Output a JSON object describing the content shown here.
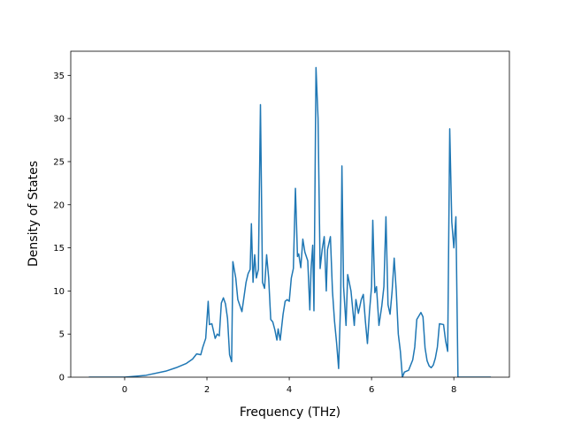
{
  "chart_data": {
    "type": "line",
    "xlabel": "Frequency (THz)",
    "ylabel": "Density of States",
    "color": "#1f77b4",
    "xlim": [
      -1.31,
      9.35
    ],
    "ylim": [
      0,
      37.8
    ],
    "xticks": [
      0,
      2,
      4,
      6,
      8
    ],
    "yticks": [
      0,
      5,
      10,
      15,
      20,
      25,
      30,
      35
    ],
    "x": [
      -0.87,
      0,
      0.5,
      1,
      1.25,
      1.5,
      1.65,
      1.75,
      1.85,
      1.9,
      1.97,
      2.03,
      2.06,
      2.12,
      2.2,
      2.25,
      2.3,
      2.35,
      2.4,
      2.45,
      2.5,
      2.55,
      2.6,
      2.63,
      2.7,
      2.75,
      2.85,
      2.95,
      3.0,
      3.05,
      3.08,
      3.12,
      3.16,
      3.2,
      3.25,
      3.3,
      3.35,
      3.4,
      3.45,
      3.5,
      3.55,
      3.6,
      3.65,
      3.7,
      3.73,
      3.78,
      3.85,
      3.9,
      3.95,
      4.0,
      4.05,
      4.1,
      4.15,
      4.2,
      4.23,
      4.28,
      4.33,
      4.38,
      4.45,
      4.5,
      4.53,
      4.57,
      4.6,
      4.65,
      4.7,
      4.75,
      4.8,
      4.85,
      4.9,
      4.93,
      5.0,
      5.05,
      5.1,
      5.15,
      5.2,
      5.25,
      5.28,
      5.32,
      5.38,
      5.42,
      5.5,
      5.58,
      5.62,
      5.68,
      5.75,
      5.8,
      5.85,
      5.9,
      5.95,
      6.0,
      6.03,
      6.08,
      6.12,
      6.18,
      6.25,
      6.3,
      6.35,
      6.4,
      6.45,
      6.5,
      6.55,
      6.6,
      6.65,
      6.7,
      6.75,
      6.8,
      6.9,
      7.0,
      7.05,
      7.1,
      7.2,
      7.25,
      7.3,
      7.35,
      7.4,
      7.45,
      7.5,
      7.55,
      7.6,
      7.65,
      7.75,
      7.8,
      7.85,
      7.9,
      7.95,
      8.0,
      8.05,
      8.1,
      8.3,
      8.9
    ],
    "values": [
      0,
      0,
      0.2,
      0.7,
      1.1,
      1.6,
      2.1,
      2.7,
      2.6,
      3.5,
      4.5,
      8.8,
      6.1,
      6.2,
      4.5,
      5.0,
      4.8,
      8.6,
      9.2,
      8.5,
      6.8,
      2.6,
      1.8,
      13.4,
      11.5,
      9.0,
      7.6,
      11.0,
      12.0,
      12.5,
      17.8,
      11.0,
      14.2,
      11.5,
      12.5,
      31.6,
      11.0,
      10.3,
      14.2,
      11.5,
      6.7,
      6.4,
      5.5,
      4.3,
      5.6,
      4.3,
      7.3,
      8.8,
      9.0,
      8.8,
      11.5,
      12.6,
      21.9,
      14.0,
      14.3,
      12.7,
      16.0,
      14.5,
      13.5,
      7.8,
      12.5,
      15.3,
      7.7,
      35.9,
      30.0,
      12.6,
      14.8,
      16.3,
      10.0,
      14.8,
      16.3,
      10.0,
      6.5,
      4.0,
      1.0,
      9.0,
      24.5,
      10.5,
      6.0,
      11.9,
      10.0,
      6.0,
      9.0,
      7.4,
      9.0,
      9.6,
      6.5,
      3.9,
      7.6,
      10.5,
      18.2,
      9.8,
      10.5,
      6.0,
      8.3,
      10.5,
      18.6,
      8.4,
      7.3,
      10.0,
      13.8,
      10.0,
      5.0,
      3.0,
      0,
      0.6,
      0.8,
      2.0,
      3.5,
      6.7,
      7.5,
      7.0,
      3.4,
      1.9,
      1.3,
      1.1,
      1.4,
      2.2,
      3.5,
      6.2,
      6.1,
      4.2,
      3.0,
      28.8,
      18.0,
      15.0,
      18.6,
      0,
      0,
      0
    ]
  }
}
